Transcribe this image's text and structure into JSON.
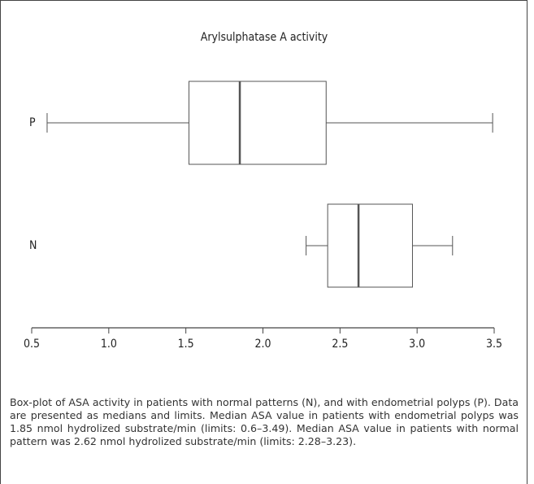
{
  "chart_data": {
    "type": "box",
    "title": "Arylsulphatase A activity",
    "categories": [
      "P",
      "N"
    ],
    "boxes": [
      {
        "min": 0.6,
        "q1": 1.52,
        "median": 1.85,
        "q3": 2.41,
        "max": 3.49
      },
      {
        "min": 2.28,
        "q1": 2.42,
        "median": 2.62,
        "q3": 2.97,
        "max": 3.23
      }
    ],
    "xlim": [
      0.5,
      3.5
    ],
    "xticks": [
      0.5,
      {
        "value": 1,
        "label": "1.0"
      },
      1.5,
      {
        "value": 2,
        "label": "2.0"
      },
      2.5,
      {
        "value": 3,
        "label": "3.0"
      },
      3.5
    ],
    "color": "#555555"
  },
  "caption": "Box-plot of ASA activity in patients  with normal patterns (N), and with endometrial polyps (P). Data are presented as medians and limits. Median ASA value in patients with endometrial polyps was 1.85 nmol hydrolized substrate/min (limits: 0.6–3.49). Median ASA value in patients with normal pattern was 2.62  nmol hydrolized substrate/min (limits: 2.28–3.23)."
}
